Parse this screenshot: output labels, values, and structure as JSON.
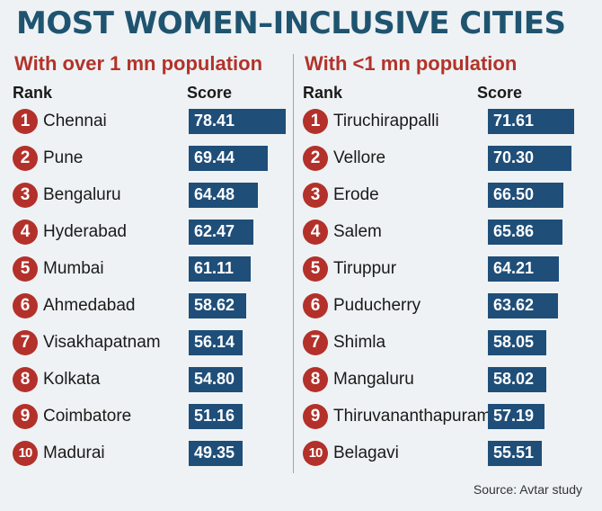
{
  "title": "MOST WOMEN–INCLUSIVE CITIES",
  "source": "Source: Avtar study",
  "colors": {
    "title": "#1f5470",
    "subtitle": "#b3322a",
    "badge": "#b3312a",
    "bar": "#1f4e79"
  },
  "chart_data": [
    {
      "type": "bar",
      "title": "With over 1 mn population",
      "rank_header": "Rank",
      "score_header": "Score",
      "ranks": [
        1,
        2,
        3,
        4,
        5,
        6,
        7,
        8,
        9,
        10
      ],
      "categories": [
        "Chennai",
        "Pune",
        "Bengaluru",
        "Hyderabad",
        "Mumbai",
        "Ahmedabad",
        "Visakhapatnam",
        "Kolkata",
        "Coimbatore",
        "Madurai"
      ],
      "values": [
        "78.41",
        "69.44",
        "64.48",
        "62.47",
        "61.11",
        "58.62",
        "56.14",
        "54.80",
        "51.16",
        "49.35"
      ]
    },
    {
      "type": "bar",
      "title": "With <1 mn population",
      "rank_header": "Rank",
      "score_header": "Score",
      "ranks": [
        1,
        2,
        3,
        4,
        5,
        6,
        7,
        8,
        9,
        10
      ],
      "categories": [
        "Tiruchirappalli",
        "Vellore",
        "Erode",
        "Salem",
        "Tiruppur",
        "Puducherry",
        "Shimla",
        "Mangaluru",
        "Thiruvananthapuram",
        "Belagavi"
      ],
      "values": [
        "71.61",
        "70.30",
        "66.50",
        "65.86",
        "64.21",
        "63.62",
        "58.05",
        "58.02",
        "57.19",
        "55.51"
      ]
    }
  ]
}
